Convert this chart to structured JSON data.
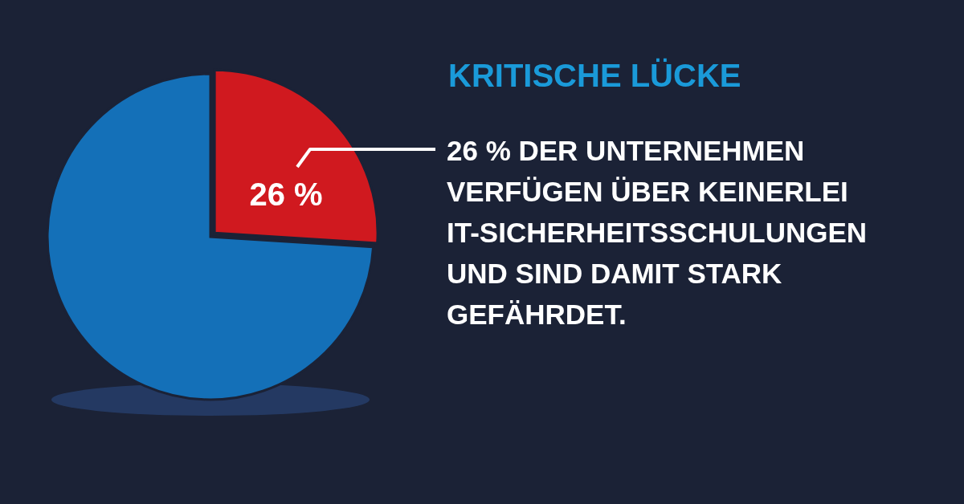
{
  "chart_data": {
    "type": "pie",
    "title": "KRITISCHE LÜCKE",
    "subtitle": "26 % DER UNTERNEHMEN VERFÜGEN ÜBER KEINERLEI IT-SICHERHEITSSCHULUNGEN UND SIND DAMIT STARK GEFÄHRDET.",
    "categories": [
      null,
      null
    ],
    "values": [
      26,
      74
    ],
    "colors": [
      "#d0191f",
      "#1470b8"
    ],
    "value_labels": [
      "26 %",
      null
    ]
  }
}
